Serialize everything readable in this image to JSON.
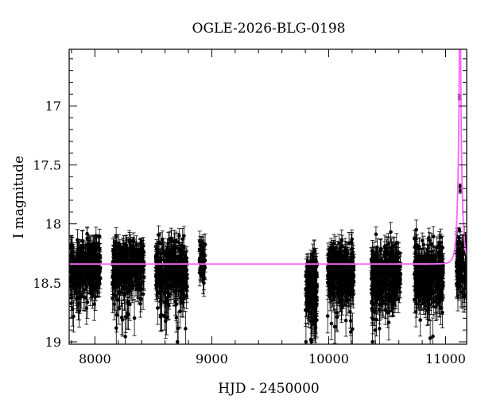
{
  "chart_data": {
    "type": "scatter",
    "title": "OGLE-2026-BLG-0198",
    "xlabel": "HJD - 2450000",
    "ylabel": "I magnitude",
    "xlim": [
      7780,
      11180
    ],
    "ylim": [
      19.02,
      16.52
    ],
    "y_inverted": true,
    "x_ticks": [
      8000,
      9000,
      10000,
      11000
    ],
    "y_ticks": [
      17,
      17.5,
      18,
      18.5,
      19
    ],
    "y_tick_labels": [
      "17",
      "17.5",
      "18",
      "18.5",
      "19"
    ],
    "x_minor_step": 200,
    "y_minor_step": 0.1,
    "baseline_magnitude": 18.34,
    "point_color": "#000000",
    "model_color": "#ff66ff",
    "observing_seasons": [
      {
        "start": 7790,
        "end": 8045,
        "mean_mag": 18.36,
        "scatter": 0.11,
        "n_points": 320
      },
      {
        "start": 8150,
        "end": 8420,
        "mean_mag": 18.36,
        "scatter": 0.11,
        "n_points": 320
      },
      {
        "start": 8520,
        "end": 8790,
        "mean_mag": 18.4,
        "scatter": 0.13,
        "n_points": 320
      },
      {
        "start": 8895,
        "end": 8945,
        "mean_mag": 18.31,
        "scatter": 0.08,
        "n_points": 50
      },
      {
        "start": 9800,
        "end": 9900,
        "mean_mag": 18.55,
        "scatter": 0.14,
        "n_points": 160
      },
      {
        "start": 9990,
        "end": 10215,
        "mean_mag": 18.4,
        "scatter": 0.12,
        "n_points": 300
      },
      {
        "start": 10365,
        "end": 10615,
        "mean_mag": 18.43,
        "scatter": 0.13,
        "n_points": 300
      },
      {
        "start": 10730,
        "end": 10980,
        "mean_mag": 18.42,
        "scatter": 0.12,
        "n_points": 300
      },
      {
        "start": 11090,
        "end": 11180,
        "mean_mag": 18.36,
        "scatter": 0.12,
        "n_points": 90
      }
    ],
    "peak_points": [
      {
        "x": 11120,
        "y": 16.92
      },
      {
        "x": 11122,
        "y": 16.93
      },
      {
        "x": 11124,
        "y": 17.68
      },
      {
        "x": 11126,
        "y": 17.72
      },
      {
        "x": 11118,
        "y": 18.05
      },
      {
        "x": 11116,
        "y": 18.12
      }
    ],
    "model": {
      "type": "point-lens",
      "t0": 11123,
      "tE": 30,
      "u0": 0.002,
      "baseline_mag": 18.34
    }
  }
}
